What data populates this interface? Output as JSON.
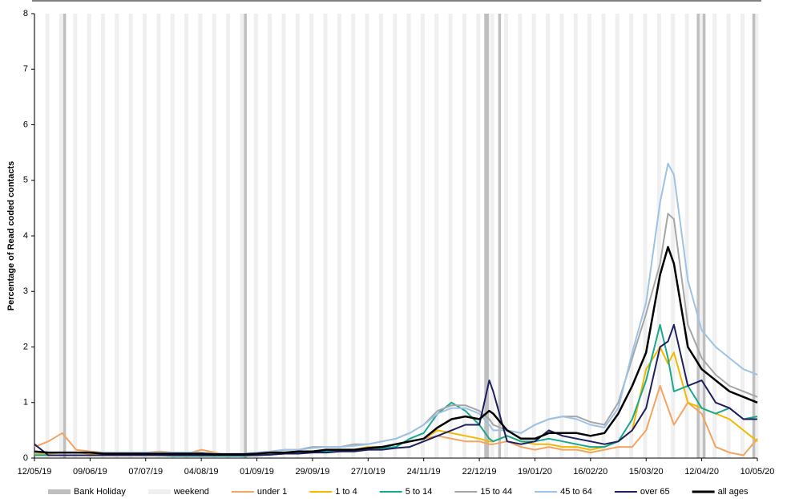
{
  "chart_data": {
    "type": "line",
    "y_label": "Percentage of Read coded contacts",
    "x": [
      "12/05/19",
      "19/05/19",
      "26/05/19",
      "02/06/19",
      "09/06/19",
      "16/06/19",
      "23/06/19",
      "30/06/19",
      "07/07/19",
      "14/07/19",
      "21/07/19",
      "28/07/19",
      "04/08/19",
      "11/08/19",
      "18/08/19",
      "25/08/19",
      "01/09/19",
      "08/09/19",
      "15/09/19",
      "22/09/19",
      "29/09/19",
      "06/10/19",
      "13/10/19",
      "20/10/19",
      "27/10/19",
      "03/11/19",
      "10/11/19",
      "17/11/19",
      "24/11/19",
      "01/12/19",
      "08/12/19",
      "15/12/19",
      "22/12/19",
      "27/12/19",
      "29/12/19",
      "05/01/20",
      "12/01/20",
      "19/01/20",
      "26/01/20",
      "02/02/20",
      "09/02/20",
      "16/02/20",
      "23/02/20",
      "01/03/20",
      "08/03/20",
      "15/03/20",
      "22/03/20",
      "26/03/20",
      "29/03/20",
      "05/04/20",
      "12/04/20",
      "19/04/20",
      "26/04/20",
      "03/05/20",
      "10/05/20"
    ],
    "xlim": [
      "12/05/19",
      "10/05/20"
    ],
    "xticks": [
      "12/05/19",
      "09/06/19",
      "07/07/19",
      "04/08/19",
      "01/09/19",
      "29/09/19",
      "27/10/19",
      "24/11/19",
      "22/12/19",
      "19/01/20",
      "16/02/20",
      "15/03/20",
      "12/04/20",
      "10/05/20"
    ],
    "ylim": [
      0,
      8
    ],
    "yticks": [
      0,
      1,
      2,
      3,
      4,
      5,
      6,
      7,
      8
    ],
    "bank_holidays": [
      "27/05/19",
      "26/08/19",
      "25/12/19",
      "26/12/19",
      "01/01/20",
      "10/04/20",
      "13/04/20",
      "08/05/20"
    ],
    "shading": [
      {
        "name": "Bank Holiday",
        "color": "#bfbfbf"
      },
      {
        "name": "weekend",
        "color": "#efefef"
      }
    ],
    "series": [
      {
        "name": "under 1",
        "color": "#f4a460",
        "values": [
          0.2,
          0.3,
          0.45,
          0.15,
          0.12,
          0.1,
          0.1,
          0.08,
          0.1,
          0.12,
          0.1,
          0.08,
          0.15,
          0.1,
          0.05,
          0.05,
          0.05,
          0.08,
          0.08,
          0.1,
          0.1,
          0.12,
          0.15,
          0.15,
          0.2,
          0.2,
          0.25,
          0.3,
          0.35,
          0.4,
          0.35,
          0.3,
          0.3,
          0.25,
          0.25,
          0.3,
          0.2,
          0.15,
          0.2,
          0.15,
          0.15,
          0.1,
          0.15,
          0.2,
          0.2,
          0.5,
          1.3,
          0.9,
          0.6,
          1.0,
          0.8,
          0.2,
          0.1,
          0.05,
          0.35
        ]
      },
      {
        "name": "1 to 4",
        "color": "#f5b800",
        "values": [
          0.08,
          0.08,
          0.1,
          0.1,
          0.08,
          0.08,
          0.08,
          0.08,
          0.08,
          0.1,
          0.1,
          0.1,
          0.1,
          0.08,
          0.06,
          0.06,
          0.06,
          0.08,
          0.1,
          0.12,
          0.12,
          0.15,
          0.15,
          0.15,
          0.2,
          0.2,
          0.25,
          0.3,
          0.35,
          0.5,
          0.45,
          0.4,
          0.35,
          0.3,
          0.3,
          0.4,
          0.3,
          0.25,
          0.25,
          0.2,
          0.2,
          0.15,
          0.2,
          0.3,
          0.5,
          1.6,
          2.0,
          1.7,
          1.9,
          1.0,
          0.9,
          0.8,
          0.7,
          0.5,
          0.3
        ]
      },
      {
        "name": "5 to 14",
        "color": "#1aa88e",
        "values": [
          0.05,
          0.05,
          0.05,
          0.05,
          0.05,
          0.05,
          0.05,
          0.05,
          0.05,
          0.05,
          0.04,
          0.04,
          0.04,
          0.04,
          0.04,
          0.04,
          0.05,
          0.06,
          0.08,
          0.1,
          0.1,
          0.12,
          0.12,
          0.15,
          0.15,
          0.18,
          0.2,
          0.35,
          0.45,
          0.8,
          1.0,
          0.85,
          0.6,
          0.35,
          0.3,
          0.4,
          0.3,
          0.3,
          0.35,
          0.3,
          0.25,
          0.2,
          0.2,
          0.3,
          0.7,
          1.4,
          2.4,
          1.8,
          1.2,
          1.3,
          0.9,
          0.8,
          0.9,
          0.7,
          0.75
        ]
      },
      {
        "name": "15 to 44",
        "color": "#a6a6a6",
        "values": [
          0.1,
          0.1,
          0.1,
          0.1,
          0.1,
          0.1,
          0.1,
          0.1,
          0.1,
          0.1,
          0.1,
          0.1,
          0.1,
          0.08,
          0.08,
          0.08,
          0.1,
          0.12,
          0.15,
          0.15,
          0.2,
          0.2,
          0.2,
          0.25,
          0.25,
          0.3,
          0.35,
          0.45,
          0.6,
          0.85,
          0.95,
          0.95,
          0.85,
          0.7,
          0.6,
          0.5,
          0.45,
          0.6,
          0.7,
          0.75,
          0.75,
          0.65,
          0.6,
          1.0,
          1.8,
          2.6,
          3.5,
          4.4,
          4.3,
          2.4,
          1.8,
          1.5,
          1.3,
          1.2,
          1.1
        ]
      },
      {
        "name": "45 to 64",
        "color": "#9dc3e6",
        "values": [
          0.1,
          0.1,
          0.1,
          0.1,
          0.1,
          0.1,
          0.1,
          0.1,
          0.1,
          0.1,
          0.1,
          0.1,
          0.1,
          0.08,
          0.08,
          0.08,
          0.1,
          0.12,
          0.15,
          0.15,
          0.18,
          0.2,
          0.2,
          0.22,
          0.25,
          0.3,
          0.35,
          0.45,
          0.6,
          0.8,
          0.9,
          0.9,
          0.8,
          0.6,
          0.5,
          0.5,
          0.45,
          0.6,
          0.7,
          0.75,
          0.7,
          0.6,
          0.55,
          0.9,
          1.9,
          2.8,
          4.6,
          5.3,
          5.1,
          3.2,
          2.3,
          2.0,
          1.8,
          1.6,
          1.5
        ]
      },
      {
        "name": "over 65",
        "color": "#1f1f5e",
        "values": [
          0.25,
          0.05,
          0.05,
          0.05,
          0.05,
          0.05,
          0.05,
          0.05,
          0.05,
          0.05,
          0.05,
          0.05,
          0.05,
          0.05,
          0.05,
          0.05,
          0.05,
          0.06,
          0.08,
          0.08,
          0.1,
          0.1,
          0.12,
          0.12,
          0.15,
          0.15,
          0.18,
          0.2,
          0.3,
          0.4,
          0.5,
          0.6,
          0.6,
          1.4,
          1.2,
          0.3,
          0.25,
          0.3,
          0.5,
          0.4,
          0.35,
          0.3,
          0.25,
          0.3,
          0.5,
          0.9,
          2.0,
          2.1,
          2.4,
          1.3,
          1.4,
          1.0,
          0.9,
          0.7,
          0.7
        ]
      },
      {
        "name": "all ages",
        "color": "#000000",
        "values": [
          0.12,
          0.1,
          0.1,
          0.1,
          0.1,
          0.08,
          0.08,
          0.08,
          0.08,
          0.08,
          0.08,
          0.08,
          0.08,
          0.07,
          0.07,
          0.07,
          0.08,
          0.1,
          0.1,
          0.12,
          0.12,
          0.15,
          0.15,
          0.15,
          0.18,
          0.2,
          0.25,
          0.3,
          0.35,
          0.55,
          0.7,
          0.75,
          0.7,
          0.85,
          0.8,
          0.5,
          0.35,
          0.35,
          0.45,
          0.45,
          0.45,
          0.4,
          0.45,
          0.8,
          1.3,
          1.9,
          3.3,
          3.8,
          3.5,
          2.0,
          1.6,
          1.4,
          1.2,
          1.1,
          1.0
        ]
      }
    ]
  }
}
